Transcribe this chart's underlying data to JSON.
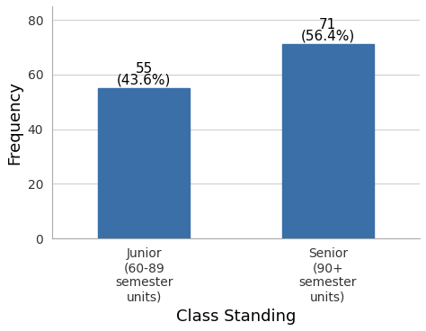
{
  "categories": [
    "Junior\n(60-89\nsemester\nunits)",
    "Senior\n(90+\nsemester\nunits)"
  ],
  "values": [
    55,
    71
  ],
  "percentages": [
    "(43.6%)",
    "(56.4%)"
  ],
  "bar_color": "#3a6fa8",
  "xlabel": "Class Standing",
  "ylabel": "Frequency",
  "ylim": [
    0,
    85
  ],
  "yticks": [
    0,
    20,
    40,
    60,
    80
  ],
  "bar_width": 0.5,
  "axis_label_fontsize": 13,
  "tick_fontsize": 10,
  "annotation_fontsize": 11,
  "background_color": "#ffffff",
  "grid_color": "#d0d0d0"
}
